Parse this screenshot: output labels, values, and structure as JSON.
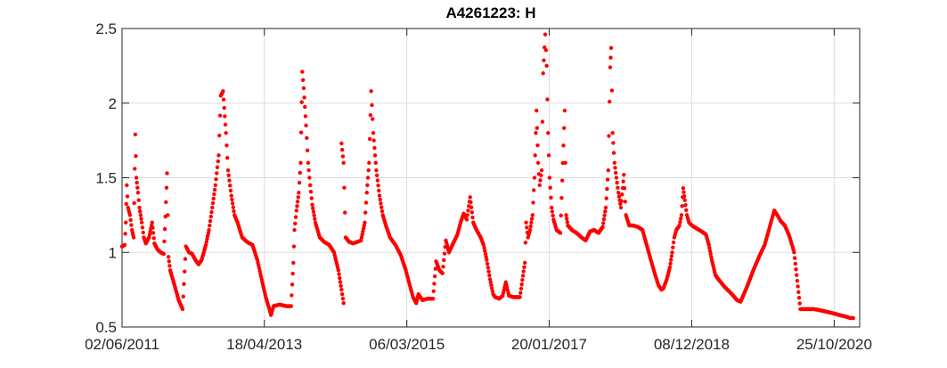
{
  "chart_data": {
    "type": "scatter",
    "title": "A4261223: H",
    "xlabel": "",
    "ylabel": "",
    "x_ticks": [
      "02/06/2011",
      "18/04/2013",
      "06/03/2015",
      "20/01/2017",
      "08/12/2018",
      "25/10/2020"
    ],
    "y_ticks": [
      "0.5",
      "1",
      "1.5",
      "2",
      "2.5"
    ],
    "xlim": [
      "2011-06-02",
      "2021-02-25"
    ],
    "ylim": [
      0.5,
      2.5
    ],
    "grid": true,
    "marker_color": "#ff0000",
    "series": [
      {
        "points": [
          [
            "2011-06-02",
            1.04
          ],
          [
            "2011-06-15",
            1.05
          ],
          [
            "2011-06-20",
            1.2
          ],
          [
            "2011-06-25",
            1.45
          ],
          [
            "2011-07-01",
            1.3
          ],
          [
            "2011-07-10",
            1.25
          ],
          [
            "2011-07-20",
            1.15
          ],
          [
            "2011-07-28",
            1.1
          ],
          [
            "2011-08-05",
            1.79
          ],
          [
            "2011-08-10",
            1.5
          ],
          [
            "2011-08-18",
            1.4
          ],
          [
            "2011-08-25",
            1.3
          ],
          [
            "2011-09-05",
            1.2
          ],
          [
            "2011-09-15",
            1.1
          ],
          [
            "2011-09-25",
            1.06
          ],
          [
            "2011-10-10",
            1.1
          ],
          [
            "2011-10-25",
            1.2
          ],
          [
            "2011-11-05",
            1.06
          ],
          [
            "2011-11-20",
            1.02
          ],
          [
            "2011-12-05",
            1.0
          ],
          [
            "2011-12-20",
            0.99
          ],
          [
            "2011-12-28",
            1.24
          ],
          [
            "2012-01-05",
            1.53
          ],
          [
            "2012-01-12",
            0.97
          ],
          [
            "2012-01-20",
            0.88
          ],
          [
            "2012-02-10",
            0.78
          ],
          [
            "2012-03-01",
            0.68
          ],
          [
            "2012-03-20",
            0.62
          ],
          [
            "2012-04-05",
            1.04
          ],
          [
            "2012-04-20",
            1.0
          ],
          [
            "2012-05-05",
            0.99
          ],
          [
            "2012-05-20",
            0.95
          ],
          [
            "2012-06-05",
            0.92
          ],
          [
            "2012-06-20",
            0.95
          ],
          [
            "2012-07-10",
            1.05
          ],
          [
            "2012-07-25",
            1.15
          ],
          [
            "2012-08-10",
            1.3
          ],
          [
            "2012-08-25",
            1.45
          ],
          [
            "2012-09-10",
            1.65
          ],
          [
            "2012-09-20",
            2.05
          ],
          [
            "2012-10-01",
            2.08
          ],
          [
            "2012-10-15",
            1.8
          ],
          [
            "2012-10-25",
            1.55
          ],
          [
            "2012-11-10",
            1.38
          ],
          [
            "2012-11-25",
            1.25
          ],
          [
            "2012-12-10",
            1.2
          ],
          [
            "2013-01-01",
            1.1
          ],
          [
            "2013-01-25",
            1.07
          ],
          [
            "2013-02-20",
            1.05
          ],
          [
            "2013-03-15",
            0.95
          ],
          [
            "2013-04-05",
            0.82
          ],
          [
            "2013-04-25",
            0.7
          ],
          [
            "2013-05-10",
            0.63
          ],
          [
            "2013-05-20",
            0.58
          ],
          [
            "2013-06-01",
            0.64
          ],
          [
            "2013-07-01",
            0.65
          ],
          [
            "2013-08-01",
            0.64
          ],
          [
            "2013-08-25",
            0.64
          ],
          [
            "2013-09-05",
            0.93
          ],
          [
            "2013-09-10",
            1.15
          ],
          [
            "2013-09-20",
            1.28
          ],
          [
            "2013-10-01",
            1.4
          ],
          [
            "2013-10-10",
            1.6
          ],
          [
            "2013-10-18",
            2.21
          ],
          [
            "2013-10-25",
            2.1
          ],
          [
            "2013-11-05",
            1.85
          ],
          [
            "2013-11-15",
            1.6
          ],
          [
            "2013-11-25",
            1.45
          ],
          [
            "2013-12-05",
            1.32
          ],
          [
            "2013-12-20",
            1.2
          ],
          [
            "2014-01-10",
            1.1
          ],
          [
            "2014-02-01",
            1.07
          ],
          [
            "2014-02-25",
            1.05
          ],
          [
            "2014-03-20",
            1.0
          ],
          [
            "2014-04-10",
            0.88
          ],
          [
            "2014-04-25",
            0.75
          ],
          [
            "2014-05-05",
            0.66
          ],
          [
            "2014-04-25",
            1.73
          ],
          [
            "2014-05-05",
            1.6
          ],
          [
            "2014-05-15",
            1.1
          ],
          [
            "2014-06-01",
            1.07
          ],
          [
            "2014-06-20",
            1.06
          ],
          [
            "2014-07-10",
            1.07
          ],
          [
            "2014-07-28",
            1.08
          ],
          [
            "2014-08-15",
            1.2
          ],
          [
            "2014-08-25",
            1.4
          ],
          [
            "2014-09-05",
            1.6
          ],
          [
            "2014-09-15",
            2.08
          ],
          [
            "2014-09-25",
            1.8
          ],
          [
            "2014-10-10",
            1.55
          ],
          [
            "2014-10-25",
            1.38
          ],
          [
            "2014-11-10",
            1.25
          ],
          [
            "2014-11-25",
            1.18
          ],
          [
            "2014-12-15",
            1.1
          ],
          [
            "2015-01-10",
            1.05
          ],
          [
            "2015-02-05",
            0.98
          ],
          [
            "2015-03-01",
            0.88
          ],
          [
            "2015-03-20",
            0.78
          ],
          [
            "2015-04-05",
            0.7
          ],
          [
            "2015-04-20",
            0.66
          ],
          [
            "2015-05-01",
            0.72
          ],
          [
            "2015-05-20",
            0.68
          ],
          [
            "2015-06-15",
            0.69
          ],
          [
            "2015-07-10",
            0.69
          ],
          [
            "2015-07-25",
            0.94
          ],
          [
            "2015-08-10",
            0.88
          ],
          [
            "2015-08-25",
            0.86
          ],
          [
            "2015-09-10",
            1.08
          ],
          [
            "2015-09-25",
            1.0
          ],
          [
            "2015-10-15",
            1.06
          ],
          [
            "2015-11-05",
            1.12
          ],
          [
            "2015-11-20",
            1.2
          ],
          [
            "2015-12-05",
            1.26
          ],
          [
            "2015-12-20",
            1.22
          ],
          [
            "2016-01-05",
            1.37
          ],
          [
            "2016-01-20",
            1.2
          ],
          [
            "2016-02-05",
            1.15
          ],
          [
            "2016-02-25",
            1.1
          ],
          [
            "2016-03-10",
            1.05
          ],
          [
            "2016-03-25",
            0.95
          ],
          [
            "2016-04-10",
            0.82
          ],
          [
            "2016-04-25",
            0.72
          ],
          [
            "2016-05-05",
            0.7
          ],
          [
            "2016-05-25",
            0.69
          ],
          [
            "2016-06-10",
            0.71
          ],
          [
            "2016-06-25",
            0.8
          ],
          [
            "2016-07-10",
            0.71
          ],
          [
            "2016-08-01",
            0.7
          ],
          [
            "2016-09-01",
            0.7
          ],
          [
            "2016-09-25",
            0.93
          ],
          [
            "2016-10-01",
            1.2
          ],
          [
            "2016-10-10",
            1.1
          ],
          [
            "2016-10-20",
            1.15
          ],
          [
            "2016-11-01",
            1.25
          ],
          [
            "2016-11-10",
            1.5
          ],
          [
            "2016-11-20",
            1.95
          ],
          [
            "2016-11-28",
            1.6
          ],
          [
            "2016-12-05",
            1.45
          ],
          [
            "2016-12-15",
            1.55
          ],
          [
            "2016-12-22",
            2.2
          ],
          [
            "2017-01-01",
            2.46
          ],
          [
            "2017-01-08",
            2.25
          ],
          [
            "2017-01-15",
            1.8
          ],
          [
            "2017-01-22",
            1.5
          ],
          [
            "2017-02-01",
            1.3
          ],
          [
            "2017-02-10",
            1.22
          ],
          [
            "2017-02-25",
            1.15
          ],
          [
            "2017-03-15",
            1.13
          ],
          [
            "2017-04-05",
            1.95
          ],
          [
            "2017-04-12",
            1.25
          ],
          [
            "2017-04-20",
            1.18
          ],
          [
            "2017-05-10",
            1.15
          ],
          [
            "2017-06-01",
            1.13
          ],
          [
            "2017-06-25",
            1.1
          ],
          [
            "2017-07-15",
            1.08
          ],
          [
            "2017-08-05",
            1.14
          ],
          [
            "2017-08-25",
            1.15
          ],
          [
            "2017-09-15",
            1.13
          ],
          [
            "2017-10-05",
            1.17
          ],
          [
            "2017-10-20",
            1.3
          ],
          [
            "2017-11-01",
            1.55
          ],
          [
            "2017-11-10",
            2.24
          ],
          [
            "2017-11-15",
            2.37
          ],
          [
            "2017-11-22",
            1.8
          ],
          [
            "2017-12-01",
            1.6
          ],
          [
            "2017-12-10",
            1.5
          ],
          [
            "2017-12-20",
            1.4
          ],
          [
            "2018-01-01",
            1.3
          ],
          [
            "2018-01-15",
            1.52
          ],
          [
            "2018-01-25",
            1.25
          ],
          [
            "2018-02-10",
            1.18
          ],
          [
            "2018-03-01",
            1.18
          ],
          [
            "2018-03-25",
            1.17
          ],
          [
            "2018-04-15",
            1.15
          ],
          [
            "2018-05-05",
            1.05
          ],
          [
            "2018-05-25",
            0.95
          ],
          [
            "2018-06-15",
            0.85
          ],
          [
            "2018-07-01",
            0.78
          ],
          [
            "2018-07-15",
            0.75
          ],
          [
            "2018-07-25",
            0.76
          ],
          [
            "2018-08-10",
            0.82
          ],
          [
            "2018-08-25",
            0.9
          ],
          [
            "2018-09-05",
            1.0
          ],
          [
            "2018-09-15",
            1.1
          ],
          [
            "2018-09-25",
            1.15
          ],
          [
            "2018-10-10",
            1.18
          ],
          [
            "2018-10-20",
            1.25
          ],
          [
            "2018-10-28",
            1.43
          ],
          [
            "2018-11-05",
            1.35
          ],
          [
            "2018-11-15",
            1.25
          ],
          [
            "2018-11-25",
            1.2
          ],
          [
            "2018-12-10",
            1.18
          ],
          [
            "2019-01-01",
            1.16
          ],
          [
            "2019-01-25",
            1.14
          ],
          [
            "2019-02-15",
            1.12
          ],
          [
            "2019-03-01",
            1.05
          ],
          [
            "2019-03-15",
            0.95
          ],
          [
            "2019-04-01",
            0.85
          ],
          [
            "2019-04-10",
            0.83
          ],
          [
            "2019-05-15",
            0.77
          ],
          [
            "2019-06-20",
            0.72
          ],
          [
            "2019-07-15",
            0.68
          ],
          [
            "2019-08-01",
            0.67
          ],
          [
            "2019-09-01",
            0.77
          ],
          [
            "2019-10-01",
            0.88
          ],
          [
            "2019-11-01",
            0.98
          ],
          [
            "2019-11-25",
            1.05
          ],
          [
            "2020-01-10",
            1.28
          ],
          [
            "2020-01-25",
            1.25
          ],
          [
            "2020-02-10",
            1.21
          ],
          [
            "2020-03-01",
            1.18
          ],
          [
            "2020-03-20",
            1.12
          ],
          [
            "2020-04-05",
            1.05
          ],
          [
            "2020-04-15",
            1.0
          ],
          [
            "2020-05-15",
            0.62
          ],
          [
            "2020-06-15",
            0.62
          ],
          [
            "2020-07-20",
            0.62
          ],
          [
            "2020-08-25",
            0.61
          ],
          [
            "2020-09-25",
            0.6
          ],
          [
            "2020-10-25",
            0.59
          ],
          [
            "2020-11-20",
            0.58
          ],
          [
            "2020-12-20",
            0.57
          ],
          [
            "2021-01-10",
            0.56
          ],
          [
            "2021-01-25",
            0.56
          ]
        ]
      }
    ]
  }
}
